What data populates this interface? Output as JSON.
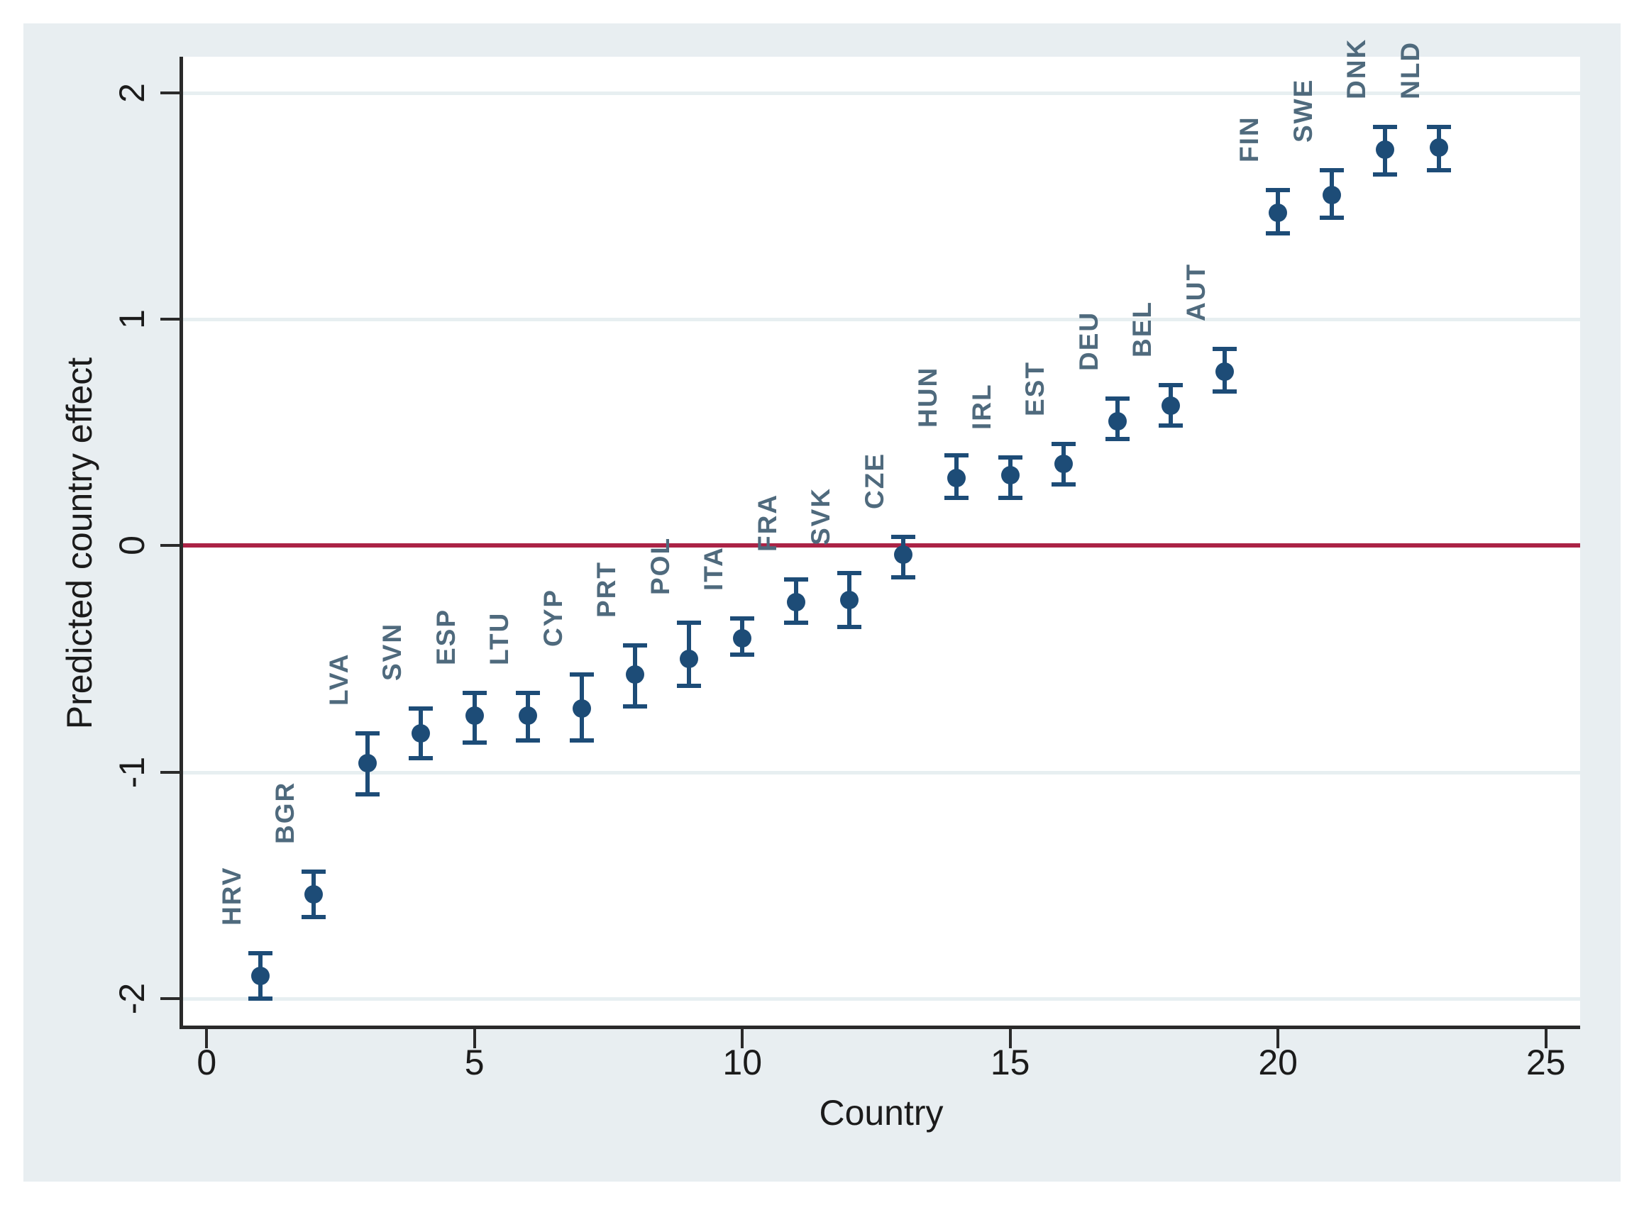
{
  "chart_data": {
    "type": "scatter",
    "title": "",
    "xlabel": "Country",
    "ylabel": "Predicted country effect",
    "xlim": [
      -0.44,
      25.64
    ],
    "ylim": [
      -2.12,
      2.16
    ],
    "xticks": [
      0,
      5,
      10,
      15,
      20,
      25
    ],
    "yticks": [
      -2,
      -1,
      0,
      1,
      2
    ],
    "grid": "horizontal",
    "legend": "none",
    "refline_y": 0,
    "marker_shape": "filled-circle",
    "error_bars": "capped-vertical-95ci",
    "points": [
      {
        "label": "HRV",
        "x": 1,
        "y": -1.9,
        "lo": -2.0,
        "hi": -1.8
      },
      {
        "label": "BGR",
        "x": 2,
        "y": -1.54,
        "lo": -1.64,
        "hi": -1.44
      },
      {
        "label": "LVA",
        "x": 3,
        "y": -0.96,
        "lo": -1.1,
        "hi": -0.83
      },
      {
        "label": "SVN",
        "x": 4,
        "y": -0.83,
        "lo": -0.94,
        "hi": -0.72
      },
      {
        "label": "ESP",
        "x": 5,
        "y": -0.75,
        "lo": -0.87,
        "hi": -0.65
      },
      {
        "label": "LTU",
        "x": 6,
        "y": -0.75,
        "lo": -0.86,
        "hi": -0.65
      },
      {
        "label": "CYP",
        "x": 7,
        "y": -0.72,
        "lo": -0.86,
        "hi": -0.57
      },
      {
        "label": "PRT",
        "x": 8,
        "y": -0.57,
        "lo": -0.71,
        "hi": -0.44
      },
      {
        "label": "POL",
        "x": 9,
        "y": -0.5,
        "lo": -0.62,
        "hi": -0.34
      },
      {
        "label": "ITA",
        "x": 10,
        "y": -0.41,
        "lo": -0.48,
        "hi": -0.32
      },
      {
        "label": "FRA",
        "x": 11,
        "y": -0.25,
        "lo": -0.34,
        "hi": -0.15
      },
      {
        "label": "SVK",
        "x": 12,
        "y": -0.24,
        "lo": -0.36,
        "hi": -0.12
      },
      {
        "label": "CZE",
        "x": 13,
        "y": -0.04,
        "lo": -0.14,
        "hi": 0.04
      },
      {
        "label": "HUN",
        "x": 14,
        "y": 0.3,
        "lo": 0.21,
        "hi": 0.4
      },
      {
        "label": "IRL",
        "x": 15,
        "y": 0.31,
        "lo": 0.21,
        "hi": 0.39
      },
      {
        "label": "EST",
        "x": 16,
        "y": 0.36,
        "lo": 0.27,
        "hi": 0.45
      },
      {
        "label": "DEU",
        "x": 17,
        "y": 0.55,
        "lo": 0.47,
        "hi": 0.65
      },
      {
        "label": "BEL",
        "x": 18,
        "y": 0.62,
        "lo": 0.53,
        "hi": 0.71
      },
      {
        "label": "AUT",
        "x": 19,
        "y": 0.77,
        "lo": 0.68,
        "hi": 0.87
      },
      {
        "label": "FIN",
        "x": 20,
        "y": 1.47,
        "lo": 1.38,
        "hi": 1.57
      },
      {
        "label": "SWE",
        "x": 21,
        "y": 1.55,
        "lo": 1.45,
        "hi": 1.66
      },
      {
        "label": "DNK",
        "x": 22,
        "y": 1.75,
        "lo": 1.64,
        "hi": 1.85
      },
      {
        "label": "NLD",
        "x": 23,
        "y": 1.76,
        "lo": 1.66,
        "hi": 1.85
      }
    ],
    "colors": {
      "marker": "#1d4c77",
      "error_bar": "#1d4c77",
      "point_label": "#4f6a7d",
      "refline": "#ab2346",
      "axis": "#2a2a2a",
      "tick_text": "#1b1b1b",
      "grid": "#e7eff1",
      "plot_bg": "#ffffff",
      "canvas_bg": "#e8eef1",
      "outer_border": "#ffffff"
    }
  }
}
